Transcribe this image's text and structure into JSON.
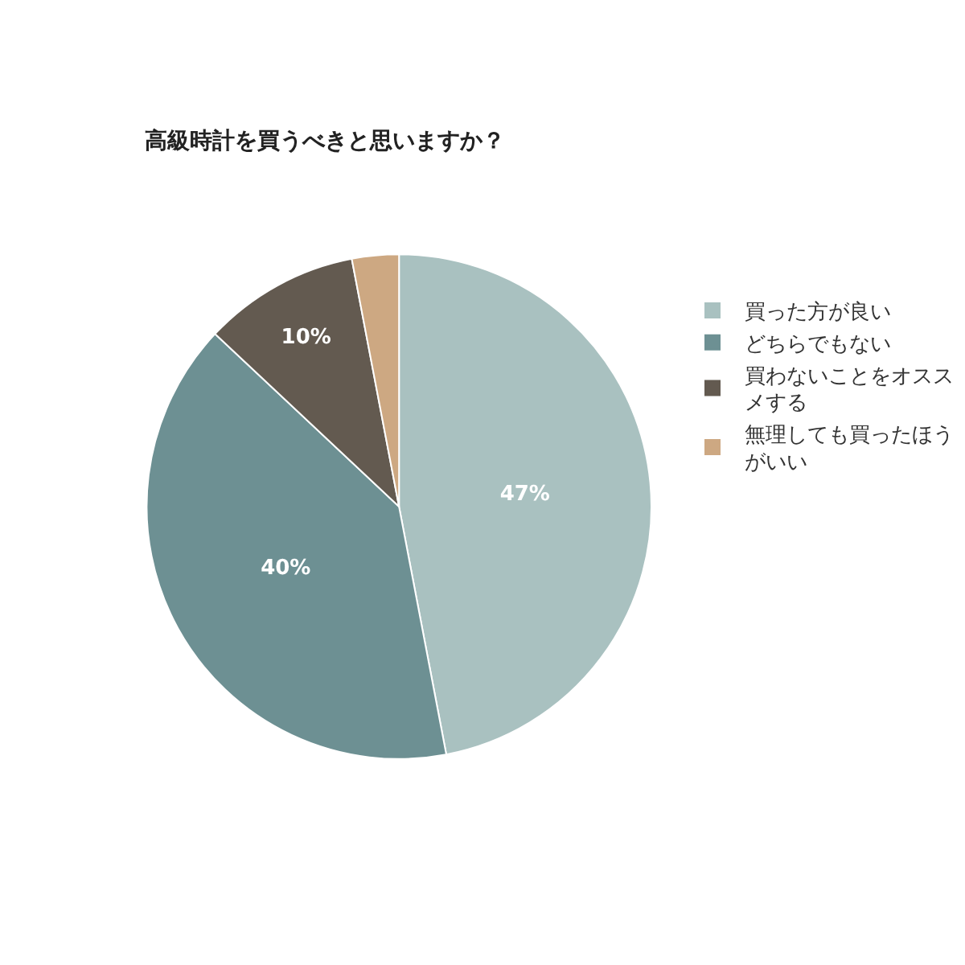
{
  "chart_data": {
    "type": "pie",
    "title": "高級時計を買うべきと思いますか？",
    "categories": [
      "買った方が良い",
      "どちらでもない",
      "買わないことをオススメする",
      "無理しても買ったほうがいい"
    ],
    "values": [
      47,
      40,
      10,
      3
    ],
    "colors": [
      "#a9c1c0",
      "#6d9093",
      "#635a50",
      "#cda882"
    ],
    "value_labels": [
      "47%",
      "40%",
      "10%",
      null
    ],
    "legend": "right"
  }
}
